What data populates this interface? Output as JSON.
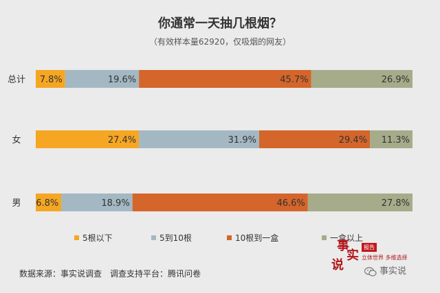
{
  "title": "你通常一天抽几根烟？",
  "subtitle": "（有效样本量62920，仅吸烟的网友）",
  "source": "数据来源：事实说调查　调查支持平台：腾讯问卷",
  "watermark": {
    "chars": [
      "事",
      "实",
      "说"
    ],
    "badge": "报告",
    "tagline": "立体世界 多维选择"
  },
  "wechat_label": "事实说",
  "colors": {
    "s1": "#f5a623",
    "s2": "#a3b8c2",
    "s3": "#d4652b",
    "s4": "#a6ab8a"
  },
  "chart_data": {
    "type": "bar",
    "orientation": "horizontal",
    "stacked": "100%",
    "categories": [
      "总计",
      "女",
      "男"
    ],
    "series": [
      {
        "name": "5根以下",
        "values": [
          7.8,
          27.4,
          6.8
        ],
        "labels": [
          "7.8%",
          "27.4%",
          "6.8%"
        ]
      },
      {
        "name": "5到10根",
        "values": [
          19.6,
          31.9,
          18.9
        ],
        "labels": [
          "19.6%",
          "31.9%",
          "18.9%"
        ]
      },
      {
        "name": "10根到一盒",
        "values": [
          45.7,
          29.4,
          46.6
        ],
        "labels": [
          "45.7%",
          "29.4%",
          "46.6%"
        ]
      },
      {
        "name": "一盒以上",
        "values": [
          26.9,
          11.3,
          27.8
        ],
        "labels": [
          "26.9%",
          "11.3%",
          "27.8%"
        ]
      }
    ],
    "legend_position": "bottom",
    "grid": false
  }
}
